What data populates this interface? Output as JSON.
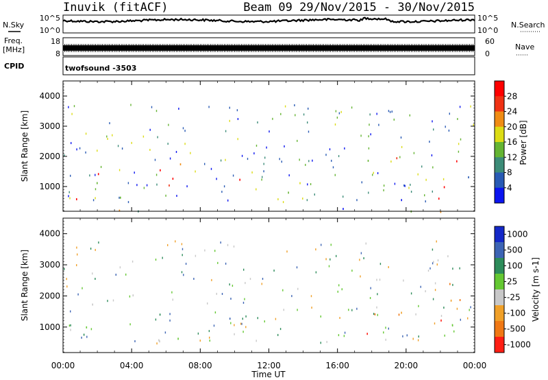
{
  "header": {
    "station": "Inuvik (fitACF)",
    "beam_info": "Beam 09  29/Nov/2015 - 30/Nov/2015"
  },
  "top_panels": {
    "nsky_label": "N.Sky",
    "nsky_ticks": [
      "10^5",
      "10^0"
    ],
    "nsearch_label": "N.Search",
    "nsearch_ticks": [
      "10^5",
      "10^0"
    ],
    "freq_label": "Freq.",
    "freq_unit": "[MHz]",
    "freq_ticks": [
      "18",
      "8"
    ],
    "nave_label": "Nave",
    "nave_ticks": [
      "60",
      "0"
    ],
    "cpid_label": "CPID",
    "cpid_value": "twofsound -3503"
  },
  "chart_data": [
    {
      "type": "heatmap",
      "quantity": "Power",
      "ylabel": "Slant Range [km]",
      "ylim": [
        180,
        4500
      ],
      "yticks": [
        1000,
        2000,
        3000,
        4000
      ],
      "colorbar_label": "Power [dB]",
      "colorbar_ticks": [
        4,
        8,
        12,
        16,
        20,
        24,
        28
      ],
      "colorbar_range": [
        0,
        32
      ],
      "colors": [
        "#0a14f0",
        "#285ab4",
        "#3c8c78",
        "#64b432",
        "#dcdc14",
        "#f08c14",
        "#f03214",
        "#ff0000"
      ],
      "scatter_regions": [
        {
          "t": [
            0.0,
            2.9
          ],
          "r": [
            550,
            1800
          ],
          "level": "high"
        },
        {
          "t": [
            3.3,
            6.9
          ],
          "r": [
            500,
            2100
          ],
          "level": "high"
        },
        {
          "t": [
            9.1,
            10.4
          ],
          "r": [
            700,
            1900
          ],
          "level": "high"
        },
        {
          "t": [
            11.7,
            13.8
          ],
          "r": [
            700,
            1800
          ],
          "level": "mid"
        },
        {
          "t": [
            17.6,
            20.5
          ],
          "r": [
            500,
            2000
          ],
          "level": "mixed"
        },
        {
          "t": [
            21.5,
            24.0
          ],
          "r": [
            450,
            2600
          ],
          "level": "high"
        },
        {
          "t": [
            0.0,
            24.0
          ],
          "r": [
            180,
            450
          ],
          "level": "mixed"
        }
      ]
    },
    {
      "type": "heatmap",
      "quantity": "Velocity",
      "ylabel": "Slant Range [km]",
      "xlabel": "Time UT",
      "xticks": [
        "00:00",
        "04:00",
        "08:00",
        "12:00",
        "16:00",
        "20:00",
        "00:00"
      ],
      "ylim": [
        180,
        4500
      ],
      "yticks": [
        1000,
        2000,
        3000,
        4000
      ],
      "colorbar_label": "Velocity [m s-1]",
      "colorbar_ticks": [
        "1000",
        "500",
        "100",
        "25",
        "-25",
        "-100",
        "-500",
        "-1000"
      ],
      "colors": [
        "#1428c8",
        "#3c64b4",
        "#2d8c5a",
        "#64c832",
        "#c8c8c8",
        "#f0a028",
        "#f07814",
        "#ff1e14"
      ],
      "scatter_regions": [
        {
          "t": [
            0.0,
            2.9
          ],
          "r": [
            550,
            1800
          ],
          "level": "positive"
        },
        {
          "t": [
            3.3,
            6.9
          ],
          "r": [
            500,
            2100
          ],
          "level": "positive"
        },
        {
          "t": [
            9.1,
            10.4
          ],
          "r": [
            700,
            1900
          ],
          "level": "positive"
        },
        {
          "t": [
            17.6,
            20.5
          ],
          "r": [
            500,
            2000
          ],
          "level": "negative"
        },
        {
          "t": [
            21.5,
            24.0
          ],
          "r": [
            450,
            2600
          ],
          "level": "negative"
        }
      ]
    }
  ]
}
